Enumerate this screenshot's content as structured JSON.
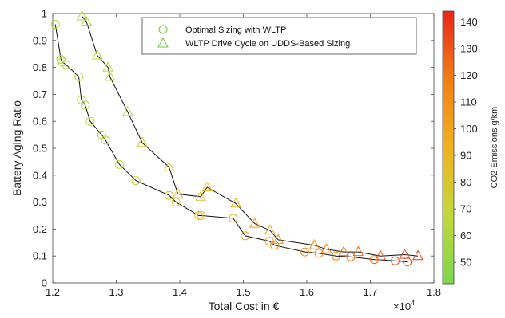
{
  "chart_data": {
    "type": "scatter",
    "xlabel": "Total Cost in €",
    "ylabel": "Battery Aging Ratio",
    "x_exponent_label": "×10",
    "x_exponent_power": "4",
    "xlim": [
      1.2,
      1.8
    ],
    "ylim": [
      0,
      1
    ],
    "xticks": [
      "1.2",
      "1.3",
      "1.4",
      "1.5",
      "1.6",
      "1.7",
      "1.8"
    ],
    "yticks": [
      "0",
      "0.1",
      "0.2",
      "0.3",
      "0.4",
      "0.5",
      "0.6",
      "0.7",
      "0.8",
      "0.9",
      "1"
    ],
    "grid": false,
    "legend_position": "top-right",
    "colorbar": {
      "label": "CO2 Emissions g/km",
      "range": [
        42,
        144
      ],
      "ticks": [
        "50",
        "60",
        "70",
        "80",
        "90",
        "100",
        "110",
        "120",
        "130",
        "140"
      ],
      "colors": [
        "#7cd650",
        "#c3d83a",
        "#f0b21e",
        "#f27e16",
        "#e8261a"
      ]
    },
    "series": [
      {
        "name": "Optimal Sizing with WLTP",
        "marker": "circle",
        "points": [
          [
            1.204,
            0.96,
            58
          ],
          [
            1.213,
            0.83,
            58
          ],
          [
            1.215,
            0.82,
            58
          ],
          [
            1.221,
            0.81,
            58
          ],
          [
            1.241,
            0.765,
            60
          ],
          [
            1.245,
            0.68,
            60
          ],
          [
            1.251,
            0.66,
            60
          ],
          [
            1.259,
            0.6,
            62
          ],
          [
            1.277,
            0.55,
            64
          ],
          [
            1.283,
            0.53,
            64
          ],
          [
            1.305,
            0.44,
            66
          ],
          [
            1.331,
            0.38,
            72
          ],
          [
            1.383,
            0.325,
            78
          ],
          [
            1.394,
            0.3,
            80
          ],
          [
            1.43,
            0.25,
            86
          ],
          [
            1.434,
            0.25,
            86
          ],
          [
            1.484,
            0.24,
            92
          ],
          [
            1.503,
            0.175,
            100
          ],
          [
            1.541,
            0.155,
            104
          ],
          [
            1.549,
            0.14,
            106
          ],
          [
            1.597,
            0.115,
            112
          ],
          [
            1.619,
            0.11,
            114
          ],
          [
            1.646,
            0.1,
            118
          ],
          [
            1.669,
            0.097,
            120
          ],
          [
            1.706,
            0.087,
            124
          ],
          [
            1.739,
            0.082,
            128
          ],
          [
            1.758,
            0.078,
            132
          ]
        ]
      },
      {
        "name": "WLTP Drive Cycle on UDDS-Based Sizing",
        "marker": "triangle",
        "points": [
          [
            1.246,
            0.99,
            58
          ],
          [
            1.253,
            0.97,
            60
          ],
          [
            1.27,
            0.845,
            62
          ],
          [
            1.287,
            0.8,
            62
          ],
          [
            1.29,
            0.765,
            64
          ],
          [
            1.318,
            0.635,
            66
          ],
          [
            1.341,
            0.52,
            76
          ],
          [
            1.383,
            0.43,
            80
          ],
          [
            1.397,
            0.33,
            84
          ],
          [
            1.433,
            0.32,
            88
          ],
          [
            1.443,
            0.355,
            90
          ],
          [
            1.488,
            0.295,
            90
          ],
          [
            1.518,
            0.22,
            104
          ],
          [
            1.542,
            0.195,
            106
          ],
          [
            1.555,
            0.16,
            108
          ],
          [
            1.612,
            0.14,
            116
          ],
          [
            1.631,
            0.125,
            118
          ],
          [
            1.658,
            0.115,
            120
          ],
          [
            1.681,
            0.115,
            124
          ],
          [
            1.716,
            0.1,
            128
          ],
          [
            1.754,
            0.105,
            136
          ],
          [
            1.775,
            0.1,
            140
          ]
        ]
      }
    ]
  }
}
